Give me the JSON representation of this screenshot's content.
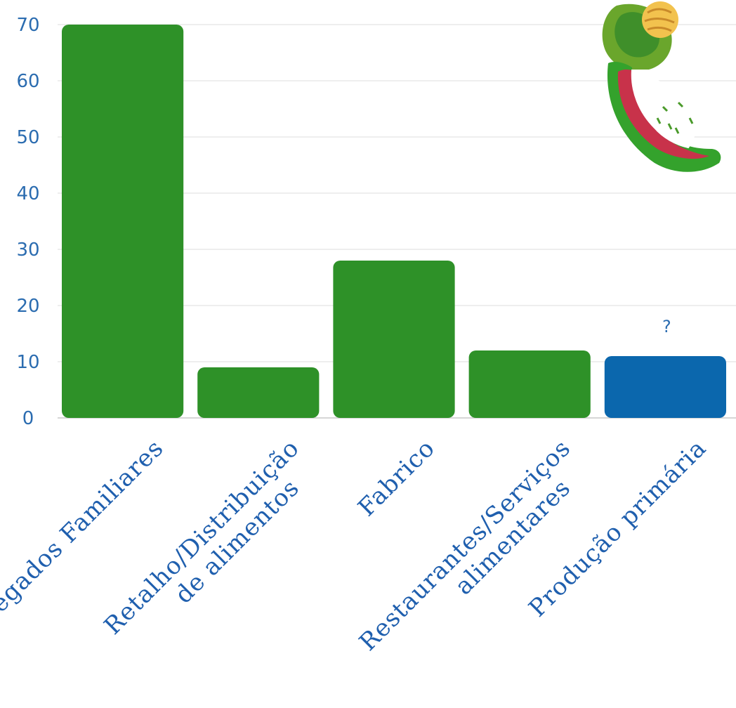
{
  "chart_data": {
    "type": "bar",
    "categories": [
      [
        "Agregados Familiares"
      ],
      [
        "Retalho/Distribuição",
        "de alimentos"
      ],
      [
        "Fabrico"
      ],
      [
        "Restaurantes/Serviços",
        "alimentares"
      ],
      [
        "Produção primária"
      ]
    ],
    "values": [
      70,
      9,
      28,
      12,
      11
    ],
    "data_labels": [
      "",
      "",
      "",
      "",
      "?"
    ],
    "yticks": [
      "0",
      "10",
      "20",
      "30",
      "40",
      "50",
      "60",
      "70"
    ],
    "ylim": [
      0,
      70
    ],
    "grid": true,
    "title": "",
    "xlabel": "",
    "ylabel": "",
    "colors": {
      "default_bar": "#2e9128",
      "highlight_bar": "#0b67ad",
      "highlight_index": 4,
      "grid": "#eeeeee",
      "axis": "#d6d6d6"
    },
    "illustration": "avocado-icon"
  }
}
